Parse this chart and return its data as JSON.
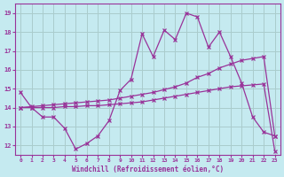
{
  "xlabel": "Windchill (Refroidissement éolien,°C)",
  "background_color": "#c5eaf0",
  "line_color": "#993399",
  "grid_color": "#aacccc",
  "xlim": [
    -0.5,
    23.5
  ],
  "ylim": [
    11.5,
    19.5
  ],
  "xticks": [
    0,
    1,
    2,
    3,
    4,
    5,
    6,
    7,
    8,
    9,
    10,
    11,
    12,
    13,
    14,
    15,
    16,
    17,
    18,
    19,
    20,
    21,
    22,
    23
  ],
  "yticks": [
    12,
    13,
    14,
    15,
    16,
    17,
    18,
    19
  ],
  "series1_x": [
    0,
    1,
    2,
    3,
    4,
    5,
    6,
    7,
    8,
    9,
    10,
    11,
    12,
    13,
    14,
    15,
    16,
    17,
    18,
    19,
    20,
    21,
    22,
    23
  ],
  "series1_y": [
    14.8,
    14.0,
    13.5,
    13.5,
    12.9,
    11.8,
    12.1,
    12.5,
    13.3,
    14.9,
    15.5,
    17.9,
    16.7,
    18.1,
    17.6,
    19.0,
    18.8,
    17.2,
    18.0,
    16.7,
    15.3,
    13.5,
    12.7,
    12.5
  ],
  "series2_x": [
    0,
    1,
    2,
    3,
    4,
    5,
    6,
    7,
    8,
    9,
    10,
    11,
    12,
    13,
    14,
    15,
    16,
    17,
    18,
    19,
    20,
    21,
    22,
    23
  ],
  "series2_y": [
    14.0,
    14.05,
    14.1,
    14.15,
    14.2,
    14.25,
    14.3,
    14.35,
    14.4,
    14.5,
    14.6,
    14.7,
    14.8,
    14.95,
    15.1,
    15.3,
    15.6,
    15.8,
    16.1,
    16.3,
    16.5,
    16.6,
    16.7,
    12.5
  ],
  "series3_x": [
    0,
    1,
    2,
    3,
    4,
    5,
    6,
    7,
    8,
    9,
    10,
    11,
    12,
    13,
    14,
    15,
    16,
    17,
    18,
    19,
    20,
    21,
    22,
    23
  ],
  "series3_y": [
    14.0,
    14.0,
    14.0,
    14.0,
    14.05,
    14.05,
    14.1,
    14.1,
    14.15,
    14.2,
    14.25,
    14.3,
    14.4,
    14.5,
    14.6,
    14.7,
    14.8,
    14.9,
    15.0,
    15.1,
    15.15,
    15.2,
    15.25,
    11.7
  ]
}
